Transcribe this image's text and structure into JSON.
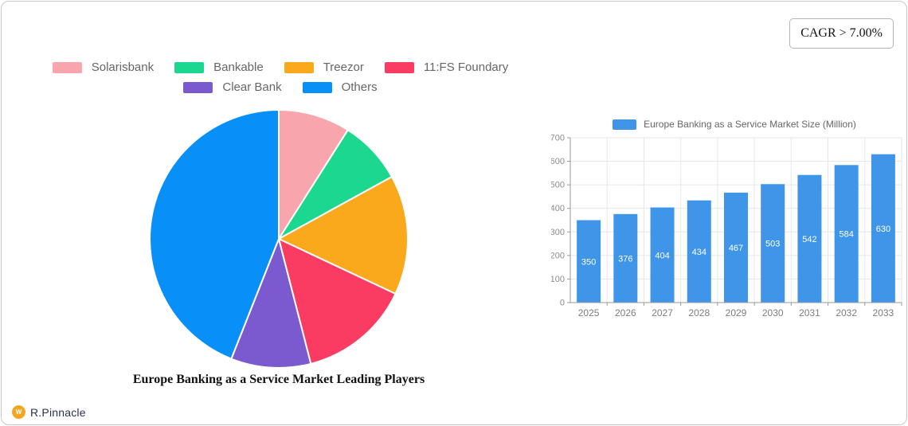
{
  "cagr_badge": {
    "label": "CAGR > 7.00%"
  },
  "brand": {
    "name": "R.Pinnacle",
    "icon_color": "#F5A623",
    "text_color": "#2B3150"
  },
  "chart_data": [
    {
      "type": "pie",
      "title": "Europe Banking as a Service Market Leading Players",
      "legend_position": "top",
      "start_angle_deg": -90,
      "direction": "clockwise",
      "slices": [
        {
          "label": "Solarisbank",
          "value": 9,
          "color": "#F8A5AD"
        },
        {
          "label": "Bankable",
          "value": 8,
          "color": "#1BD88E"
        },
        {
          "label": "Treezor",
          "value": 15,
          "color": "#FBA91C"
        },
        {
          "label": "11:FS Foundary",
          "value": 14,
          "color": "#FA3B62"
        },
        {
          "label": "Clear Bank",
          "value": 10,
          "color": "#7B59CE"
        },
        {
          "label": "Others",
          "value": 44,
          "color": "#0990F8"
        }
      ]
    },
    {
      "type": "bar",
      "series_name": "Europe Banking as a Service Market Size (Million)",
      "categories": [
        "2025",
        "2026",
        "2027",
        "2028",
        "2029",
        "2030",
        "2031",
        "2032",
        "2033"
      ],
      "values": [
        350,
        376,
        404,
        434,
        467,
        503,
        542,
        584,
        630
      ],
      "bar_color": "#3F96E9",
      "value_label_color": "#ffffff",
      "ylim": [
        0,
        700
      ],
      "ytick_step": 100,
      "grid": true,
      "legend_position": "top"
    }
  ]
}
